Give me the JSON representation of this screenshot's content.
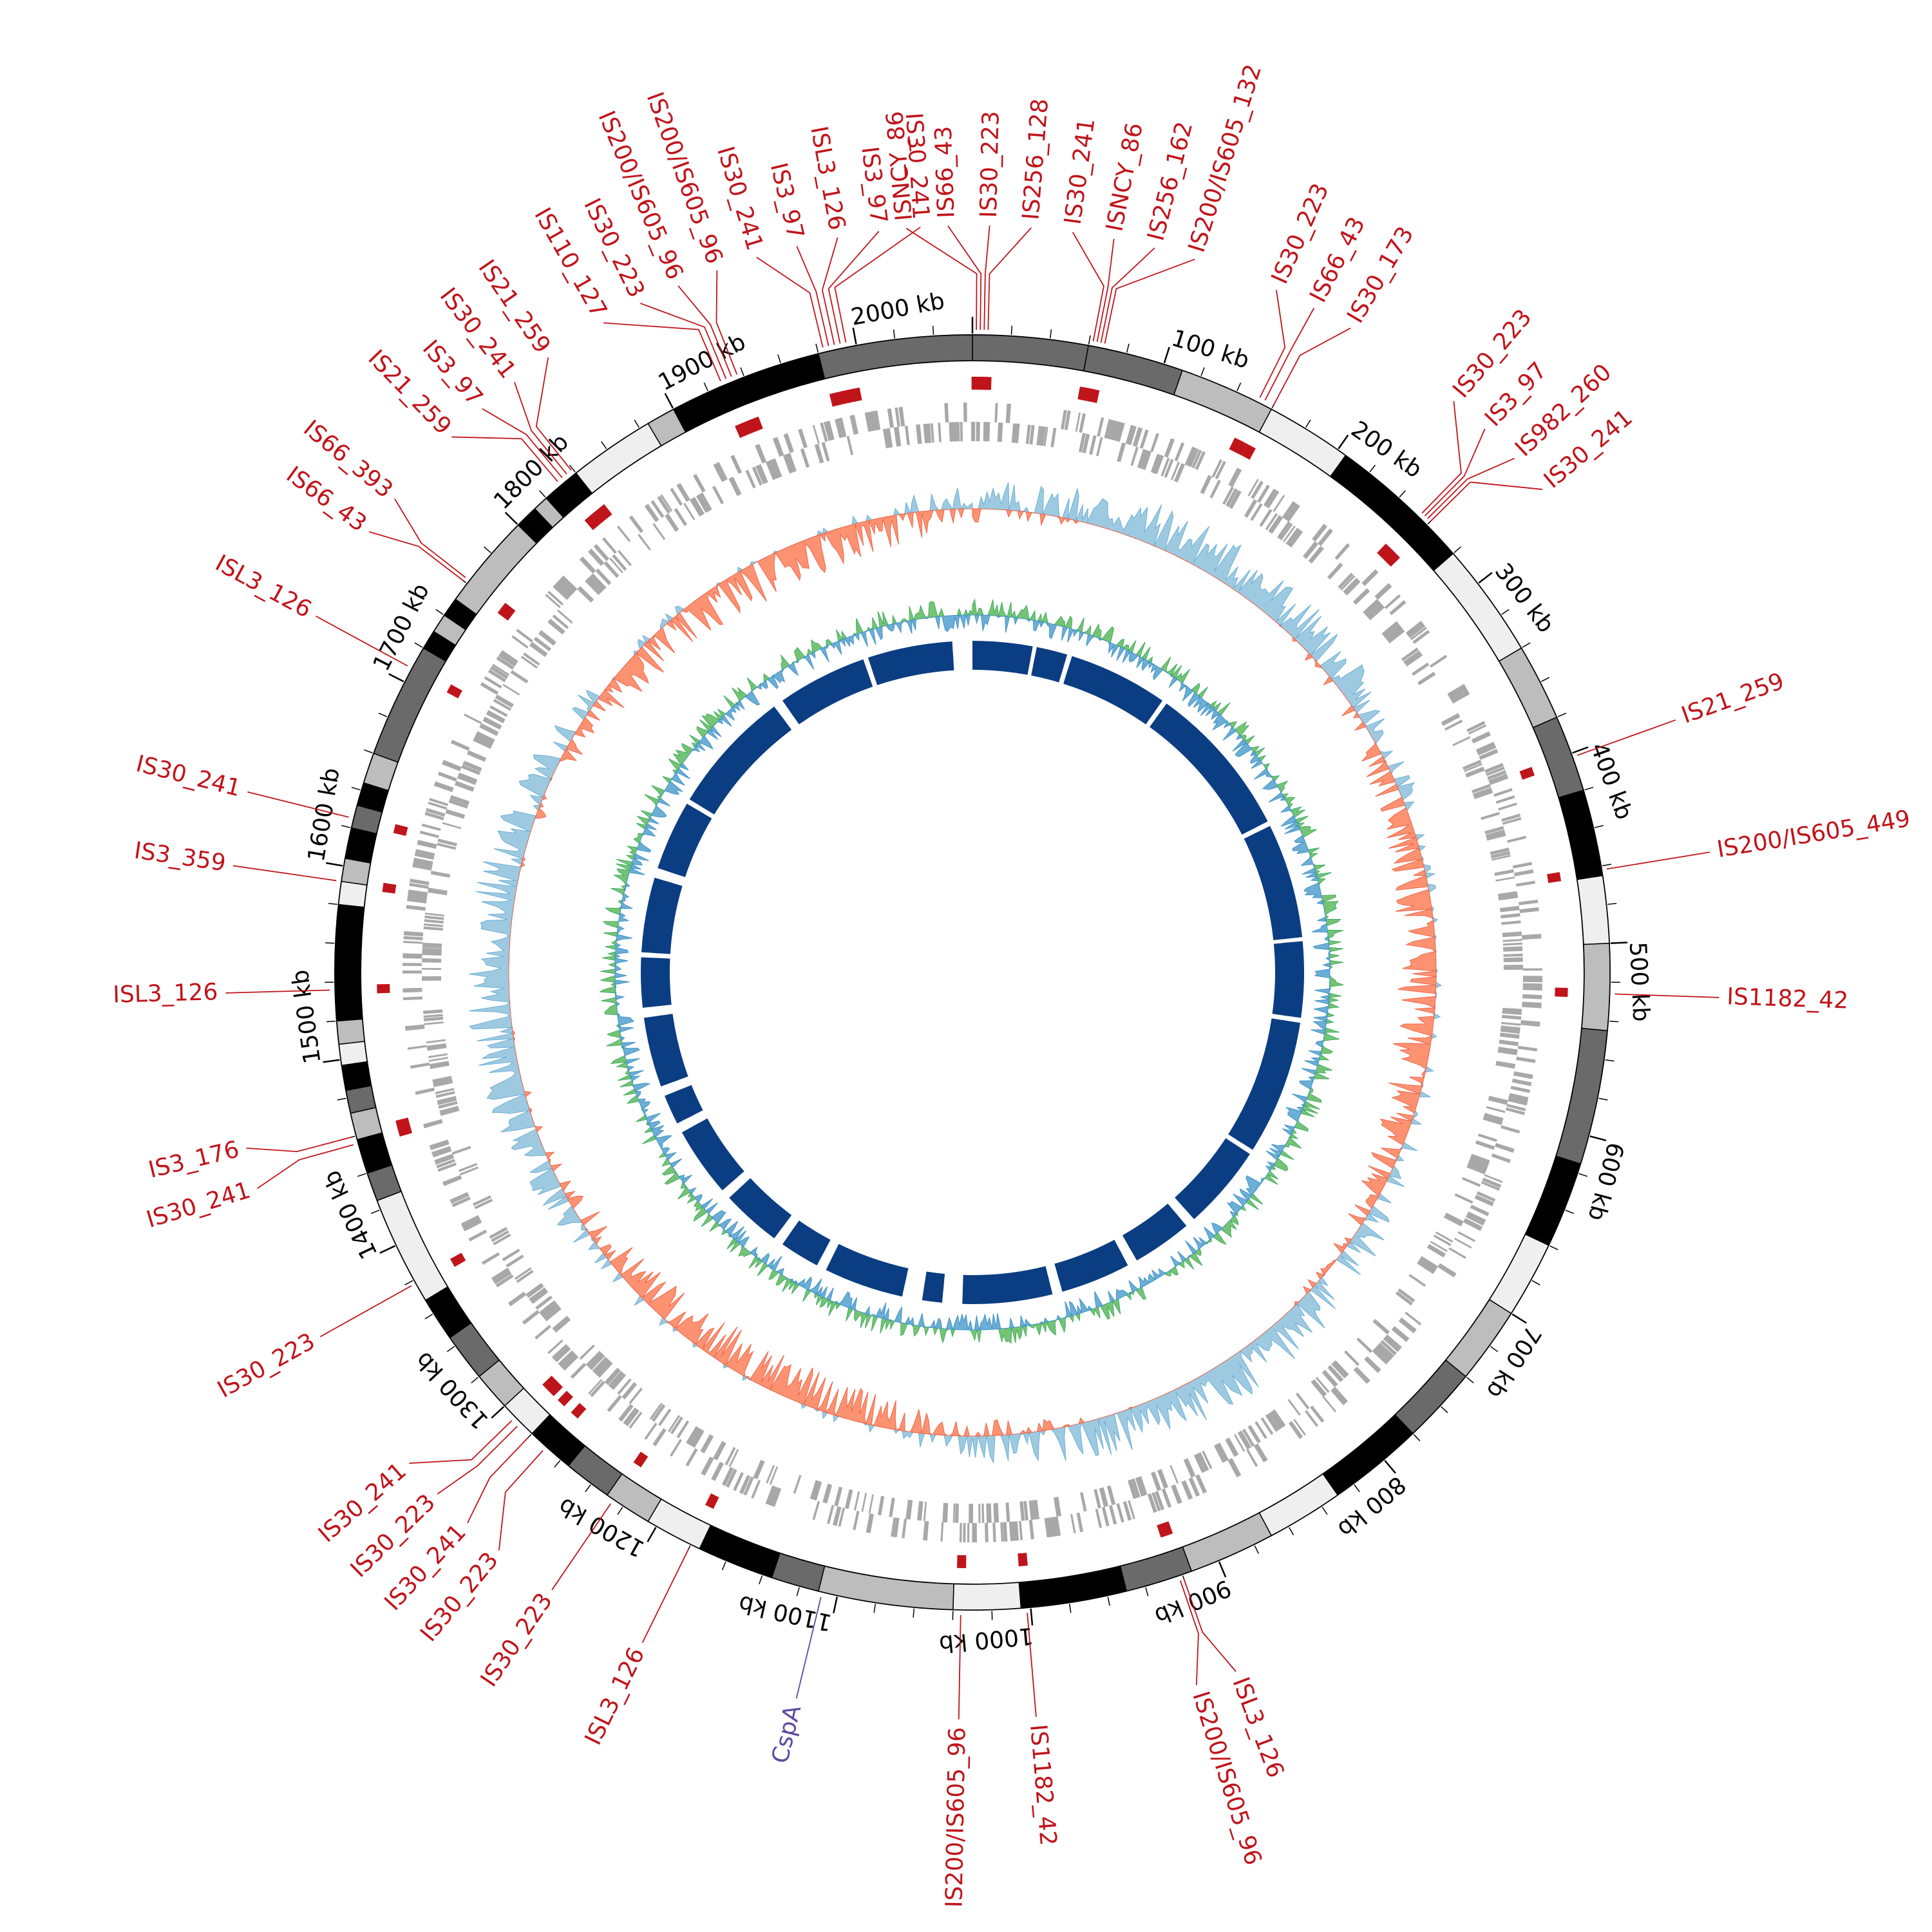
{
  "genome": {
    "total_kb": 2060,
    "tick_labels": [
      "100 kb",
      "200 kb",
      "300 kb",
      "400 kb",
      "500 kb",
      "600 kb",
      "700 kb",
      "800 kb",
      "900 kb",
      "1000 kb",
      "1100 kb",
      "1200 kb",
      "1300 kb",
      "1400 kb",
      "1500 kb",
      "1600 kb",
      "1700 kb",
      "1800 kb",
      "1900 kb",
      "2000 kb"
    ],
    "tick_positions_kb": [
      100,
      200,
      300,
      400,
      500,
      600,
      700,
      800,
      900,
      1000,
      1100,
      1200,
      1300,
      1400,
      1500,
      1600,
      1700,
      1800,
      1900,
      2000
    ]
  },
  "colors": {
    "is_element": "#c0141b",
    "gene_marker": "#5b4aa0",
    "gc_content_pos": "#9ecae1",
    "gc_content_neg": "#fc9272",
    "gc_skew": "#74c476",
    "inner_ring": "#0b3d82",
    "inner_ring_alt": "#2166ac",
    "cds": "#a8a8a8"
  },
  "chromosome_bands": [
    {
      "start": 0,
      "end": 60,
      "shade": "#6a6a6a"
    },
    {
      "start": 60,
      "end": 110,
      "shade": "#6a6a6a"
    },
    {
      "start": 110,
      "end": 160,
      "shade": "#bdbdbd"
    },
    {
      "start": 160,
      "end": 205,
      "shade": "#efefef"
    },
    {
      "start": 205,
      "end": 280,
      "shade": "#000000"
    },
    {
      "start": 280,
      "end": 340,
      "shade": "#efefef"
    },
    {
      "start": 340,
      "end": 380,
      "shade": "#bdbdbd"
    },
    {
      "start": 380,
      "end": 420,
      "shade": "#6a6a6a"
    },
    {
      "start": 420,
      "end": 465,
      "shade": "#000000"
    },
    {
      "start": 465,
      "end": 500,
      "shade": "#efefef"
    },
    {
      "start": 500,
      "end": 545,
      "shade": "#bdbdbd"
    },
    {
      "start": 545,
      "end": 615,
      "shade": "#6a6a6a"
    },
    {
      "start": 615,
      "end": 660,
      "shade": "#000000"
    },
    {
      "start": 660,
      "end": 700,
      "shade": "#efefef"
    },
    {
      "start": 700,
      "end": 740,
      "shade": "#bdbdbd"
    },
    {
      "start": 740,
      "end": 780,
      "shade": "#6a6a6a"
    },
    {
      "start": 780,
      "end": 830,
      "shade": "#000000"
    },
    {
      "start": 830,
      "end": 870,
      "shade": "#efefef"
    },
    {
      "start": 870,
      "end": 915,
      "shade": "#bdbdbd"
    },
    {
      "start": 915,
      "end": 950,
      "shade": "#6a6a6a"
    },
    {
      "start": 950,
      "end": 1005,
      "shade": "#000000"
    },
    {
      "start": 1005,
      "end": 1040,
      "shade": "#efefef"
    },
    {
      "start": 1040,
      "end": 1110,
      "shade": "#bdbdbd"
    },
    {
      "start": 1110,
      "end": 1135,
      "shade": "#6a6a6a"
    },
    {
      "start": 1135,
      "end": 1175,
      "shade": "#000000"
    },
    {
      "start": 1175,
      "end": 1205,
      "shade": "#efefef"
    },
    {
      "start": 1205,
      "end": 1230,
      "shade": "#bdbdbd"
    },
    {
      "start": 1230,
      "end": 1255,
      "shade": "#6a6a6a"
    },
    {
      "start": 1255,
      "end": 1280,
      "shade": "#000000"
    },
    {
      "start": 1280,
      "end": 1300,
      "shade": "#efefef"
    },
    {
      "start": 1300,
      "end": 1320,
      "shade": "#bdbdbd"
    },
    {
      "start": 1320,
      "end": 1345,
      "shade": "#6a6a6a"
    },
    {
      "start": 1345,
      "end": 1368,
      "shade": "#000000"
    },
    {
      "start": 1368,
      "end": 1425,
      "shade": "#efefef"
    },
    {
      "start": 1425,
      "end": 1440,
      "shade": "#6a6a6a"
    },
    {
      "start": 1440,
      "end": 1458,
      "shade": "#000000"
    },
    {
      "start": 1458,
      "end": 1472,
      "shade": "#bdbdbd"
    },
    {
      "start": 1472,
      "end": 1484,
      "shade": "#6a6a6a"
    },
    {
      "start": 1484,
      "end": 1497,
      "shade": "#000000"
    },
    {
      "start": 1497,
      "end": 1508,
      "shade": "#efefef"
    },
    {
      "start": 1508,
      "end": 1520,
      "shade": "#bdbdbd"
    },
    {
      "start": 1520,
      "end": 1580,
      "shade": "#000000"
    },
    {
      "start": 1580,
      "end": 1592,
      "shade": "#efefef"
    },
    {
      "start": 1592,
      "end": 1604,
      "shade": "#bdbdbd"
    },
    {
      "start": 1604,
      "end": 1620,
      "shade": "#000000"
    },
    {
      "start": 1620,
      "end": 1632,
      "shade": "#6a6a6a"
    },
    {
      "start": 1632,
      "end": 1644,
      "shade": "#000000"
    },
    {
      "start": 1644,
      "end": 1660,
      "shade": "#bdbdbd"
    },
    {
      "start": 1660,
      "end": 1720,
      "shade": "#6a6a6a"
    },
    {
      "start": 1720,
      "end": 1730,
      "shade": "#000000"
    },
    {
      "start": 1730,
      "end": 1740,
      "shade": "#bdbdbd"
    },
    {
      "start": 1740,
      "end": 1750,
      "shade": "#000000"
    },
    {
      "start": 1750,
      "end": 1800,
      "shade": "#bdbdbd"
    },
    {
      "start": 1800,
      "end": 1812,
      "shade": "#000000"
    },
    {
      "start": 1812,
      "end": 1820,
      "shade": "#bdbdbd"
    },
    {
      "start": 1820,
      "end": 1840,
      "shade": "#000000"
    },
    {
      "start": 1840,
      "end": 1885,
      "shade": "#efefef"
    },
    {
      "start": 1885,
      "end": 1900,
      "shade": "#bdbdbd"
    },
    {
      "start": 1900,
      "end": 1910,
      "shade": "#000000"
    },
    {
      "start": 1910,
      "end": 1980,
      "shade": "#000000"
    },
    {
      "start": 1980,
      "end": 2060,
      "shade": "#6a6a6a"
    }
  ],
  "is_elements": [
    {
      "pos": 2,
      "label": "ISNCY_86"
    },
    {
      "pos": 4,
      "label": "IS66_43"
    },
    {
      "pos": 6,
      "label": "IS30_223"
    },
    {
      "pos": 8,
      "label": "IS256_128"
    },
    {
      "pos": 62,
      "label": "IS30_241"
    },
    {
      "pos": 64,
      "label": "ISNCY_86"
    },
    {
      "pos": 66,
      "label": "IS256_162"
    },
    {
      "pos": 68,
      "label": "IS200/IS605_132"
    },
    {
      "pos": 152,
      "label": "IS30_223"
    },
    {
      "pos": 155,
      "label": "IS66_43"
    },
    {
      "pos": 160,
      "label": "IS30_173"
    },
    {
      "pos": 254,
      "label": "IS30_223"
    },
    {
      "pos": 256,
      "label": "IS3_97"
    },
    {
      "pos": 258,
      "label": "IS982_260"
    },
    {
      "pos": 260,
      "label": "IS30_241"
    },
    {
      "pos": 402,
      "label": "IS21_259"
    },
    {
      "pos": 462,
      "label": "IS200/IS605_449"
    },
    {
      "pos": 526,
      "label": "IS1182_42"
    },
    {
      "pos": 920,
      "label": "ISL3_126"
    },
    {
      "pos": 922,
      "label": "IS200/IS605_96"
    },
    {
      "pos": 1002,
      "label": "IS1182_42"
    },
    {
      "pos": 1036,
      "label": "IS200/IS605_96"
    },
    {
      "pos": 1180,
      "label": "ISL3_126"
    },
    {
      "pos": 1226,
      "label": "IS30_223"
    },
    {
      "pos": 1270,
      "label": "IS30_223"
    },
    {
      "pos": 1280,
      "label": "IS30_241"
    },
    {
      "pos": 1288,
      "label": "IS30_223"
    },
    {
      "pos": 1292,
      "label": "IS30_241"
    },
    {
      "pos": 1378,
      "label": "IS30_223"
    },
    {
      "pos": 1456,
      "label": "IS30_241"
    },
    {
      "pos": 1460,
      "label": "IS3_176"
    },
    {
      "pos": 1536,
      "label": "ISL3_126"
    },
    {
      "pos": 1592,
      "label": "IS3_359"
    },
    {
      "pos": 1625,
      "label": "IS30_241"
    },
    {
      "pos": 1708,
      "label": "ISL3_126"
    },
    {
      "pos": 1760,
      "label": "IS66_43"
    },
    {
      "pos": 1762,
      "label": "IS66_393"
    },
    {
      "pos": 1830,
      "label": "IS21_259"
    },
    {
      "pos": 1833,
      "label": "IS3_97"
    },
    {
      "pos": 1836,
      "label": "IS30_241"
    },
    {
      "pos": 1839,
      "label": "IS21_259"
    },
    {
      "pos": 1928,
      "label": "IS110_127"
    },
    {
      "pos": 1931,
      "label": "IS30_223"
    },
    {
      "pos": 1934,
      "label": "IS200/IS605_96"
    },
    {
      "pos": 1937,
      "label": "IS200/IS605_96"
    },
    {
      "pos": 1983,
      "label": "IS30_241"
    },
    {
      "pos": 1986,
      "label": "IS3_97"
    },
    {
      "pos": 1989,
      "label": "ISL3_126"
    },
    {
      "pos": 1992,
      "label": "IS3_97"
    },
    {
      "pos": 1995,
      "label": "IS30_241"
    }
  ],
  "gene_markers": [
    {
      "pos": 1108,
      "label": "CspA"
    }
  ]
}
